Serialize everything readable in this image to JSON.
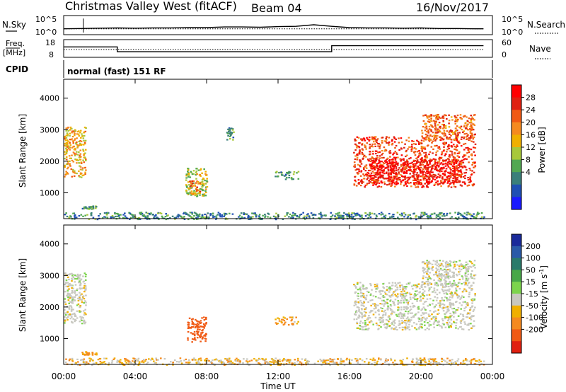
{
  "header": {
    "title": "Christmas Valley West (fitACF)",
    "beam": "Beam 04",
    "date": "16/Nov/2017"
  },
  "small_panels": {
    "nsky_label": "N.Sky",
    "nsky_ticks": [
      "10^5",
      "10^0"
    ],
    "nsearch_label": "N.Search",
    "nsearch_ticks": [
      "10^5",
      "10^0"
    ],
    "freq_label_1": "Freq.",
    "freq_label_2": "[MHz]",
    "freq_ticks": [
      "18",
      "8"
    ],
    "nave_label": "Nave",
    "nave_ticks": [
      "60",
      "0"
    ],
    "cpid_label": "CPID",
    "cpid_value": "normal (fast) 151 RF"
  },
  "x_axis": {
    "label": "Time UT",
    "ticks": [
      "00:00",
      "04:00",
      "08:00",
      "12:00",
      "16:00",
      "20:00",
      "00:00"
    ]
  },
  "y_axis": {
    "label": "Slant Range [km]",
    "ticks": [
      "1000",
      "2000",
      "3000",
      "4000"
    ]
  },
  "power_colorbar": {
    "label": "Power [dB]",
    "ticks": [
      "4",
      "8",
      "12",
      "16",
      "20",
      "24",
      "28"
    ],
    "colors": [
      "#1a1aff",
      "#1f4fb3",
      "#3a7f7a",
      "#52a852",
      "#a8c83a",
      "#f0b000",
      "#f58a1f",
      "#f05a14",
      "#e02010",
      "#ff0000"
    ]
  },
  "velocity_colorbar": {
    "label": "Velocity [m s",
    "label_sup": "-1",
    "label_end": "]",
    "ticks": [
      "200",
      "100",
      "50",
      "15",
      "-15",
      "-50",
      "-100",
      "-200"
    ],
    "colors": [
      "#1a2a9a",
      "#2a5aa8",
      "#2a7a6a",
      "#48a848",
      "#7cd44c",
      "#c8c8c0",
      "#f0b000",
      "#f58a1f",
      "#f05a14",
      "#e02010"
    ]
  },
  "chart_data": [
    {
      "type": "line",
      "name": "N.Sky / N.Search",
      "x": [
        0,
        1,
        2,
        3,
        4,
        5,
        6,
        7,
        8,
        9,
        10,
        11,
        12,
        13,
        14,
        15,
        16,
        17,
        18,
        19,
        20,
        21,
        22,
        23,
        23.5
      ],
      "y_nsky": [
        1.2,
        1.3,
        1.4,
        1.5,
        1.4,
        1.5,
        1.5,
        1.6,
        1.6,
        1.8,
        1.8,
        1.7,
        1.9,
        2.0,
        2.5,
        2.0,
        1.6,
        1.5,
        1.5,
        1.4,
        1.5,
        1.3,
        1.3,
        1.2,
        1.2
      ],
      "nsky_spike": {
        "x": 1.1,
        "y": 4.5
      }
    },
    {
      "type": "line",
      "name": "Freq. / Nave",
      "x_freq": [
        0,
        3,
        3,
        15,
        15,
        23.5
      ],
      "y_freq": [
        14,
        14,
        10,
        10,
        15,
        15
      ],
      "x_nave": [
        0,
        23.5
      ],
      "y_nave": [
        25,
        25
      ]
    },
    {
      "type": "heatmap",
      "name": "Power",
      "xlabel": "Time UT",
      "ylabel": "Slant Range [km]",
      "xlim": [
        0,
        24
      ],
      "ylim": [
        180,
        4600
      ],
      "zlabel": "Power [dB]",
      "zlim": [
        0,
        30
      ],
      "patches": [
        {
          "t0": 0.0,
          "t1": 1.2,
          "r0": 1500,
          "r1": 3100,
          "v": 18
        },
        {
          "t0": 1.0,
          "t1": 1.8,
          "r0": 500,
          "r1": 600,
          "v": 10
        },
        {
          "t0": 6.8,
          "t1": 8.0,
          "r0": 900,
          "r1": 1800,
          "v": 14
        },
        {
          "t0": 7.0,
          "t1": 7.6,
          "r0": 950,
          "r1": 1400,
          "v": 22
        },
        {
          "t0": 9.1,
          "t1": 9.5,
          "r0": 2700,
          "r1": 3100,
          "v": 10
        },
        {
          "t0": 11.8,
          "t1": 13.1,
          "r0": 1450,
          "r1": 1700,
          "v": 10
        },
        {
          "t0": 16.2,
          "t1": 23.0,
          "r0": 1200,
          "r1": 2800,
          "v": 24
        },
        {
          "t0": 17.0,
          "t1": 22.5,
          "r0": 1300,
          "r1": 2100,
          "v": 28
        },
        {
          "t0": 20.0,
          "t1": 23.0,
          "r0": 2700,
          "r1": 3500,
          "v": 22
        },
        {
          "t0": 0.0,
          "t1": 23.5,
          "r0": 180,
          "r1": 400,
          "v": 8
        }
      ]
    },
    {
      "type": "heatmap",
      "name": "Velocity",
      "xlabel": "Time UT",
      "ylabel": "Slant Range [km]",
      "xlim": [
        0,
        24
      ],
      "ylim": [
        180,
        4600
      ],
      "zlabel": "Velocity [m s-1]",
      "zlim": [
        -200,
        200
      ],
      "patches": [
        {
          "t0": 0.0,
          "t1": 1.2,
          "r0": 1500,
          "r1": 3100,
          "v": 0
        },
        {
          "t0": 1.0,
          "t1": 1.8,
          "r0": 500,
          "r1": 600,
          "v": -40
        },
        {
          "t0": 6.9,
          "t1": 8.0,
          "r0": 900,
          "r1": 1700,
          "v": -130
        },
        {
          "t0": 11.8,
          "t1": 13.1,
          "r0": 1450,
          "r1": 1700,
          "v": -30
        },
        {
          "t0": 16.2,
          "t1": 23.0,
          "r0": 1300,
          "r1": 2800,
          "v": 0
        },
        {
          "t0": 20.0,
          "t1": 23.0,
          "r0": 2700,
          "r1": 3500,
          "v": 0
        },
        {
          "t0": 0.0,
          "t1": 23.5,
          "r0": 180,
          "r1": 400,
          "v": -20
        }
      ]
    }
  ]
}
